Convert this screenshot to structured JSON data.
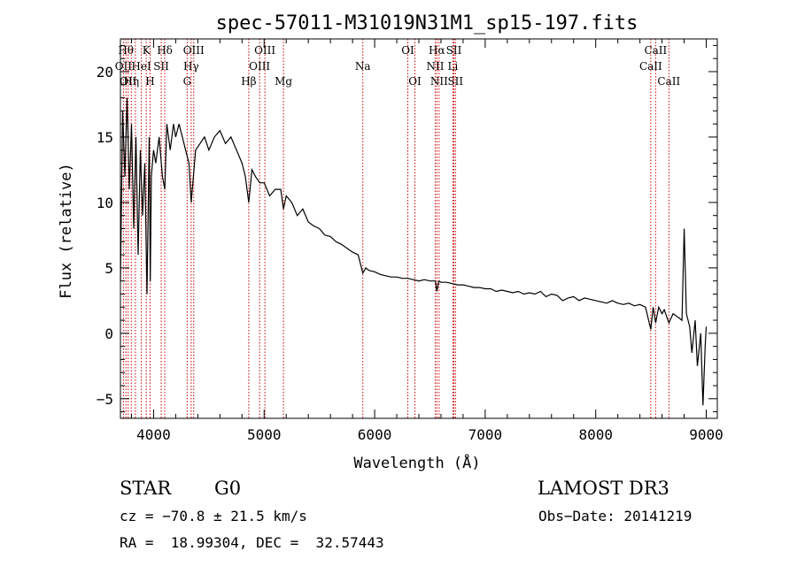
{
  "chart_data": {
    "type": "line",
    "title": "spec-57011-M31019N31M1_sp15-197.fits",
    "xlabel": "Wavelength (Å)",
    "ylabel": "Flux (relative)",
    "xlim": [
      3700,
      9100
    ],
    "ylim": [
      -6.5,
      22.5
    ],
    "x_ticks": [
      4000,
      5000,
      6000,
      7000,
      8000,
      9000
    ],
    "y_ticks": [
      -5,
      0,
      5,
      10,
      15,
      20
    ],
    "x_tick_labels": [
      "4000",
      "5000",
      "6000",
      "7000",
      "8000",
      "9000"
    ],
    "y_tick_labels": [
      "−5",
      "0",
      "5",
      "10",
      "15",
      "20"
    ],
    "grid": false,
    "series": [
      {
        "name": "flux",
        "color": "#000000",
        "x": [
          3700,
          3720,
          3740,
          3760,
          3780,
          3800,
          3820,
          3840,
          3860,
          3880,
          3900,
          3920,
          3940,
          3960,
          3970,
          3980,
          4000,
          4020,
          4050,
          4080,
          4101,
          4120,
          4150,
          4180,
          4200,
          4230,
          4260,
          4290,
          4320,
          4340,
          4360,
          4380,
          4420,
          4460,
          4500,
          4550,
          4600,
          4650,
          4700,
          4750,
          4800,
          4830,
          4861,
          4890,
          4920,
          4960,
          5000,
          5050,
          5100,
          5150,
          5175,
          5200,
          5250,
          5300,
          5350,
          5400,
          5450,
          5500,
          5550,
          5600,
          5650,
          5700,
          5750,
          5800,
          5850,
          5893,
          5920,
          5950,
          6000,
          6050,
          6100,
          6150,
          6200,
          6250,
          6300,
          6350,
          6400,
          6450,
          6500,
          6550,
          6563,
          6580,
          6600,
          6650,
          6700,
          6750,
          6800,
          6850,
          6900,
          6950,
          7000,
          7050,
          7100,
          7150,
          7200,
          7250,
          7300,
          7350,
          7400,
          7450,
          7500,
          7550,
          7600,
          7650,
          7700,
          7750,
          7800,
          7850,
          7900,
          7950,
          8000,
          8050,
          8100,
          8150,
          8200,
          8250,
          8300,
          8350,
          8400,
          8450,
          8498,
          8520,
          8542,
          8570,
          8600,
          8620,
          8662,
          8700,
          8750,
          8780,
          8800,
          8820,
          8850,
          8870,
          8900,
          8920,
          8950,
          8970,
          8990,
          9000
        ],
        "y": [
          4,
          17,
          12,
          18,
          11,
          16,
          8,
          15,
          6,
          14,
          9,
          13,
          3,
          15,
          4,
          12,
          14,
          13,
          15,
          12,
          11,
          16,
          14,
          16,
          15,
          16,
          15,
          14,
          13,
          10,
          12,
          14,
          14.5,
          15,
          14,
          15,
          15.5,
          14.5,
          15,
          14,
          13,
          12,
          10,
          12.5,
          12,
          11.5,
          11.5,
          10.5,
          11,
          11,
          9.5,
          10.5,
          10,
          9,
          9.5,
          8.5,
          8.2,
          8,
          7.5,
          7.4,
          7,
          6.8,
          6.5,
          6.2,
          6,
          4.6,
          5,
          4.8,
          4.7,
          4.5,
          4.4,
          4.3,
          4.3,
          4.2,
          4.2,
          4.1,
          4,
          4.1,
          4,
          4,
          3.2,
          4,
          3.9,
          3.9,
          3.8,
          3.7,
          3.7,
          3.6,
          3.5,
          3.5,
          3.4,
          3.4,
          3.2,
          3.3,
          3.2,
          3.1,
          3.2,
          3.0,
          3.1,
          3.0,
          3.2,
          2.8,
          3.0,
          2.9,
          2.5,
          2.7,
          2.8,
          2.5,
          2.7,
          2.6,
          2.5,
          2.4,
          2.3,
          2.5,
          2.3,
          2.2,
          2.3,
          2.1,
          2.2,
          2.0,
          0.3,
          2.0,
          0.8,
          2.0,
          1.5,
          1.8,
          0.8,
          1.5,
          1.2,
          1.0,
          8,
          1.5,
          0.5,
          -1.5,
          1.0,
          -2.5,
          0.0,
          -5.5,
          -1.0,
          0.5
        ]
      }
    ],
    "line_markers": [
      {
        "wavelength": 3727,
        "label": "OII",
        "row": 2
      },
      {
        "wavelength": 3750,
        "label": "Hθ",
        "row": 1
      },
      {
        "wavelength": 3770,
        "label": "OII",
        "row": 3
      },
      {
        "wavelength": 3798,
        "label": "Hη",
        "row": 3
      },
      {
        "wavelength": 3835,
        "label": "",
        "row": 0
      },
      {
        "wavelength": 3889,
        "label": "HeI",
        "row": 2
      },
      {
        "wavelength": 3934,
        "label": "K",
        "row": 1
      },
      {
        "wavelength": 3968,
        "label": "H",
        "row": 3
      },
      {
        "wavelength": 4069,
        "label": "SII",
        "row": 2
      },
      {
        "wavelength": 4101,
        "label": "Hδ",
        "row": 1
      },
      {
        "wavelength": 4304,
        "label": "G",
        "row": 3
      },
      {
        "wavelength": 4340,
        "label": "Hγ",
        "row": 2
      },
      {
        "wavelength": 4363,
        "label": "OIII",
        "row": 1
      },
      {
        "wavelength": 4861,
        "label": "Hβ",
        "row": 3
      },
      {
        "wavelength": 4959,
        "label": "OIII",
        "row": 2
      },
      {
        "wavelength": 5007,
        "label": "OIII",
        "row": 1
      },
      {
        "wavelength": 5175,
        "label": "Mg",
        "row": 3
      },
      {
        "wavelength": 5893,
        "label": "Na",
        "row": 2
      },
      {
        "wavelength": 6300,
        "label": "OI",
        "row": 1
      },
      {
        "wavelength": 6364,
        "label": "OI",
        "row": 3
      },
      {
        "wavelength": 6548,
        "label": "NII",
        "row": 2
      },
      {
        "wavelength": 6563,
        "label": "Hα",
        "row": 1
      },
      {
        "wavelength": 6583,
        "label": "NII",
        "row": 3
      },
      {
        "wavelength": 6708,
        "label": "Li",
        "row": 2
      },
      {
        "wavelength": 6717,
        "label": "SII",
        "row": 1
      },
      {
        "wavelength": 6731,
        "label": "SII",
        "row": 3
      },
      {
        "wavelength": 8498,
        "label": "CaII",
        "row": 2
      },
      {
        "wavelength": 8542,
        "label": "CaII",
        "row": 1
      },
      {
        "wavelength": 8662,
        "label": "CaII",
        "row": 3
      }
    ],
    "marker_color": "#cc0000"
  },
  "info": {
    "class": "STAR",
    "subclass": "G0",
    "survey": "LAMOST DR3",
    "cz": "cz = −70.8 ± 21.5 km/s",
    "obs_date": "Obs−Date: 20141219",
    "coords": "RA =  18.99304, DEC =  32.57443"
  }
}
